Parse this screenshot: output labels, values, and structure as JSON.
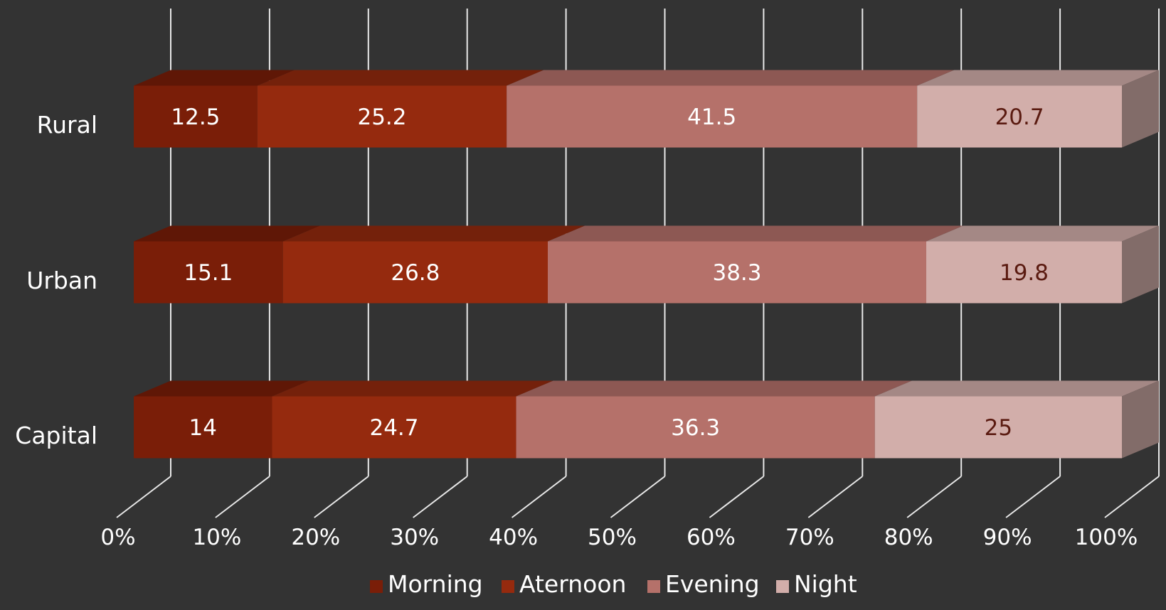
{
  "chart_data": {
    "type": "bar",
    "orientation": "horizontal",
    "stacked": "100%",
    "style": "3d",
    "categories": [
      "Capital",
      "Urban",
      "Rural"
    ],
    "series": [
      {
        "name": "Morning",
        "color": "#7a1e08",
        "values": [
          14,
          15.1,
          12.5
        ]
      },
      {
        "name": "Aternoon",
        "color": "#952a0e",
        "values": [
          24.7,
          26.8,
          25.2
        ]
      },
      {
        "name": "Evening",
        "color": "#b5716a",
        "values": [
          36.3,
          38.3,
          41.5
        ]
      },
      {
        "name": "Night",
        "color": "#d2aeaa",
        "values": [
          25,
          19.8,
          20.7
        ]
      }
    ],
    "x_ticks": [
      "0%",
      "10%",
      "20%",
      "30%",
      "40%",
      "50%",
      "60%",
      "70%",
      "80%",
      "90%",
      "100%"
    ],
    "xlim": [
      0,
      100
    ],
    "grid": true,
    "legend": "bottom",
    "title": "",
    "xlabel": "",
    "ylabel": "",
    "label_colors": {
      "dark_bg": "#ffffff",
      "light_bg": "#5a1a10"
    }
  }
}
